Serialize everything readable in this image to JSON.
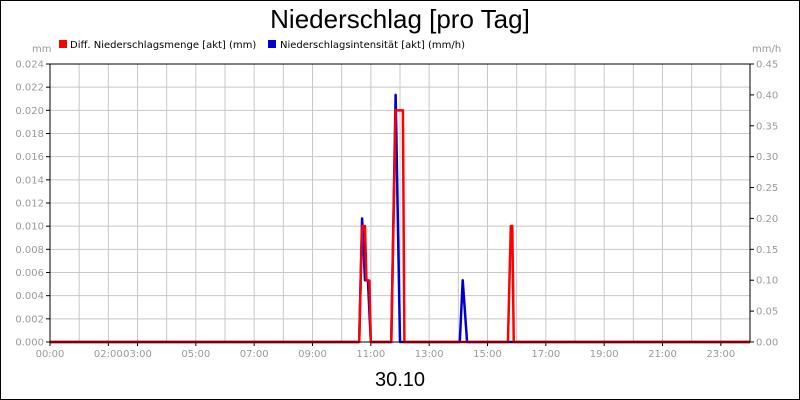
{
  "chart_data": {
    "type": "line",
    "title": "Niederschlag [pro Tag]",
    "date_label": "30.10",
    "left_unit": "mm",
    "right_unit": "mm/h",
    "x_axis": {
      "min_hour": 0,
      "max_hour": 24,
      "tick_labels": [
        {
          "hour": 0,
          "label": "00:00"
        },
        {
          "hour": 2,
          "label": "02:00"
        },
        {
          "hour": 3,
          "label": "03:00"
        },
        {
          "hour": 5,
          "label": "05:00"
        },
        {
          "hour": 7,
          "label": "07:00"
        },
        {
          "hour": 9,
          "label": "09:00"
        },
        {
          "hour": 11,
          "label": "11:00"
        },
        {
          "hour": 13,
          "label": "13:00"
        },
        {
          "hour": 15,
          "label": "15:00"
        },
        {
          "hour": 17,
          "label": "17:00"
        },
        {
          "hour": 19,
          "label": "19:00"
        },
        {
          "hour": 21,
          "label": "21:00"
        },
        {
          "hour": 23,
          "label": "23:00"
        }
      ]
    },
    "y_left": {
      "min": 0,
      "max": 0.024,
      "ticks": [
        "0.000",
        "0.002",
        "0.004",
        "0.006",
        "0.008",
        "0.010",
        "0.012",
        "0.014",
        "0.016",
        "0.018",
        "0.020",
        "0.022",
        "0.024"
      ]
    },
    "y_right": {
      "min": 0,
      "max": 0.45,
      "ticks": [
        "0.00",
        "0.05",
        "0.10",
        "0.15",
        "0.20",
        "0.25",
        "0.30",
        "0.35",
        "0.40",
        "0.45"
      ]
    },
    "grid": true,
    "legend_position": "top-left",
    "series": [
      {
        "name": "Diff. Niederschlagsmenge [akt] (mm)",
        "axis": "left",
        "color": "#ff0000",
        "points": [
          [
            0,
            0
          ],
          [
            10.6,
            0
          ],
          [
            10.7,
            0.01
          ],
          [
            10.8,
            0.01
          ],
          [
            10.85,
            0.0053
          ],
          [
            10.95,
            0.0053
          ],
          [
            11.0,
            0
          ],
          [
            11.7,
            0
          ],
          [
            11.85,
            0.02
          ],
          [
            12.1,
            0.02
          ],
          [
            12.15,
            0
          ],
          [
            15.7,
            0
          ],
          [
            15.8,
            0.01
          ],
          [
            15.85,
            0.01
          ],
          [
            15.9,
            0
          ],
          [
            24,
            0
          ]
        ]
      },
      {
        "name": "Niederschlagsintensität [akt] (mm/h)",
        "axis": "right",
        "color": "#0000cc",
        "points": [
          [
            0,
            0
          ],
          [
            10.6,
            0
          ],
          [
            10.7,
            0.2
          ],
          [
            10.8,
            0.1
          ],
          [
            10.9,
            0.1
          ],
          [
            11.0,
            0
          ],
          [
            11.7,
            0
          ],
          [
            11.85,
            0.4
          ],
          [
            12.0,
            0
          ],
          [
            14.05,
            0
          ],
          [
            14.15,
            0.1
          ],
          [
            14.3,
            0
          ],
          [
            24,
            0
          ]
        ]
      }
    ]
  }
}
